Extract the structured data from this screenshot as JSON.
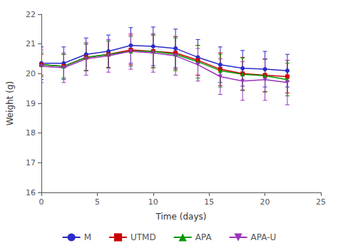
{
  "chart_data": {
    "type": "line",
    "xlabel": "Time (days)",
    "ylabel": "Weight (g)",
    "x": [
      0,
      2,
      4,
      6,
      8,
      10,
      12,
      14,
      16,
      18,
      20,
      22
    ],
    "xlim": [
      0,
      25
    ],
    "xticks": [
      0,
      5,
      10,
      15,
      20,
      25
    ],
    "ylim": [
      16,
      22
    ],
    "yticks": [
      16,
      17,
      18,
      19,
      20,
      21,
      22
    ],
    "grid": false,
    "legend": "bottom",
    "series": [
      {
        "name": "M",
        "color": "#2b2bcc",
        "marker": "circle",
        "values": [
          20.35,
          20.35,
          20.65,
          20.75,
          20.95,
          20.92,
          20.85,
          20.55,
          20.3,
          20.18,
          20.15,
          20.1
        ],
        "yerr": [
          0.55,
          0.55,
          0.55,
          0.55,
          0.6,
          0.65,
          0.65,
          0.6,
          0.6,
          0.6,
          0.6,
          0.55
        ]
      },
      {
        "name": "UTMD",
        "color": "#cc0000",
        "marker": "square",
        "values": [
          20.3,
          20.25,
          20.55,
          20.65,
          20.8,
          20.75,
          20.7,
          20.45,
          20.15,
          20.0,
          19.95,
          19.9
        ],
        "yerr": [
          0.35,
          0.4,
          0.45,
          0.45,
          0.5,
          0.55,
          0.55,
          0.5,
          0.55,
          0.55,
          0.55,
          0.55
        ]
      },
      {
        "name": "APA",
        "color": "#009900",
        "marker": "triangle-up",
        "values": [
          20.3,
          20.25,
          20.55,
          20.65,
          20.75,
          20.75,
          20.65,
          20.4,
          20.1,
          19.98,
          19.93,
          19.8
        ],
        "yerr": [
          0.4,
          0.4,
          0.45,
          0.45,
          0.5,
          0.55,
          0.55,
          0.55,
          0.55,
          0.55,
          0.55,
          0.55
        ]
      },
      {
        "name": "APA-U",
        "color": "#9933bb",
        "marker": "triangle-down",
        "values": [
          20.25,
          20.2,
          20.5,
          20.6,
          20.75,
          20.7,
          20.6,
          20.3,
          19.9,
          19.75,
          19.8,
          19.7
        ],
        "yerr": [
          0.55,
          0.5,
          0.55,
          0.55,
          0.6,
          0.65,
          0.65,
          0.55,
          0.6,
          0.65,
          0.7,
          0.75
        ]
      }
    ]
  }
}
